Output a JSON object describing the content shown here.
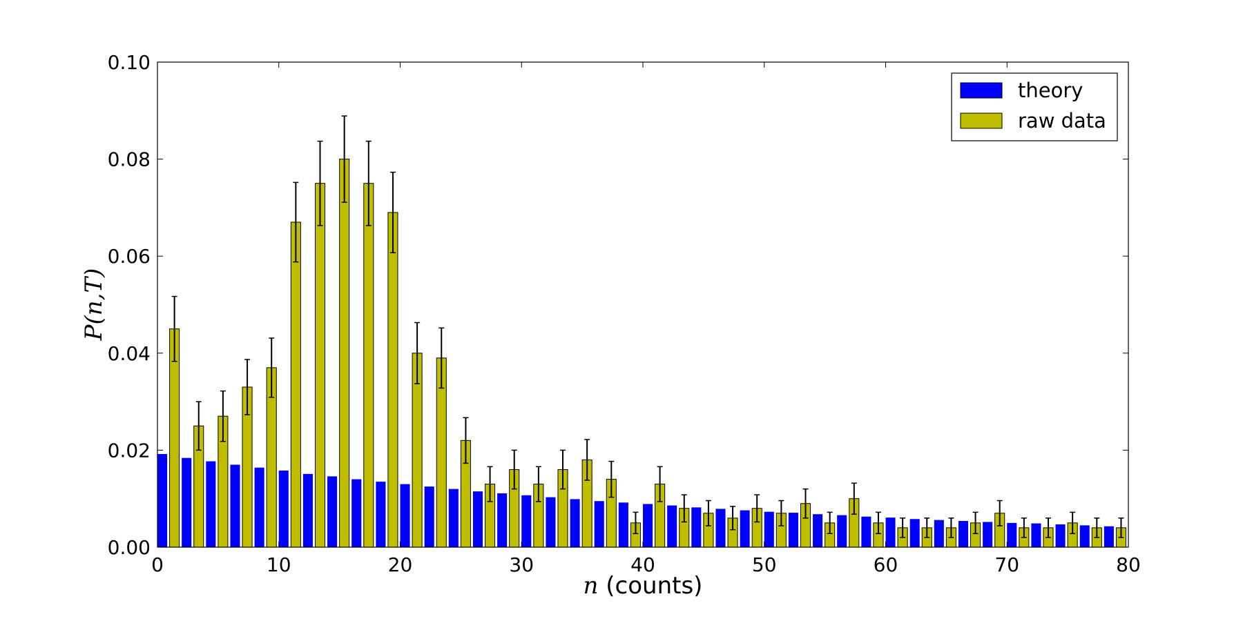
{
  "chart_data": {
    "type": "bar",
    "xlabel": "n (counts)",
    "ylabel": "P(n,T)",
    "xlim": [
      0,
      80
    ],
    "ylim": [
      0,
      0.1
    ],
    "xticks": [
      "0",
      "10",
      "20",
      "30",
      "40",
      "50",
      "60",
      "70",
      "80"
    ],
    "yticks": [
      "0.00",
      "0.02",
      "0.04",
      "0.06",
      "0.08",
      "0.10"
    ],
    "legend_position": "top-right",
    "bin_starts": [
      0,
      2,
      4,
      6,
      8,
      10,
      12,
      14,
      16,
      18,
      20,
      22,
      24,
      26,
      28,
      30,
      32,
      34,
      36,
      38,
      40,
      42,
      44,
      46,
      48,
      50,
      52,
      54,
      56,
      58,
      60,
      62,
      64,
      66,
      68,
      70,
      72,
      74,
      76,
      78
    ],
    "series": [
      {
        "name": "theory",
        "color": "#0000ff",
        "values": [
          0.0192,
          0.0184,
          0.0177,
          0.017,
          0.0164,
          0.0158,
          0.0151,
          0.0146,
          0.014,
          0.0135,
          0.013,
          0.0125,
          0.012,
          0.0115,
          0.0111,
          0.0107,
          0.0103,
          0.0099,
          0.0095,
          0.0092,
          0.0089,
          0.0086,
          0.0082,
          0.0079,
          0.0076,
          0.0073,
          0.0071,
          0.0068,
          0.0066,
          0.0063,
          0.0061,
          0.0058,
          0.0056,
          0.0054,
          0.0052,
          0.005,
          0.0049,
          0.0047,
          0.0045,
          0.0043
        ]
      },
      {
        "name": "raw data",
        "color": "#bfbf00",
        "values": [
          0.045,
          0.025,
          0.027,
          0.033,
          0.037,
          0.067,
          0.075,
          0.08,
          0.075,
          0.069,
          0.04,
          0.039,
          0.022,
          0.013,
          0.016,
          0.013,
          0.016,
          0.018,
          0.014,
          0.005,
          0.013,
          0.008,
          0.007,
          0.006,
          0.008,
          0.007,
          0.009,
          0.005,
          0.01,
          0.005,
          0.004,
          0.004,
          0.004,
          0.005,
          0.007,
          0.004,
          0.004,
          0.005,
          0.004,
          0.004
        ],
        "errors": [
          0.0067,
          0.005,
          0.0052,
          0.0057,
          0.0061,
          0.0082,
          0.0087,
          0.0089,
          0.0087,
          0.0083,
          0.0063,
          0.0062,
          0.0047,
          0.0036,
          0.004,
          0.0036,
          0.004,
          0.0042,
          0.0037,
          0.0022,
          0.0036,
          0.0028,
          0.0026,
          0.0024,
          0.0028,
          0.0026,
          0.003,
          0.0022,
          0.0032,
          0.0022,
          0.002,
          0.002,
          0.002,
          0.0022,
          0.0026,
          0.002,
          0.002,
          0.0022,
          0.002,
          0.002
        ]
      }
    ]
  }
}
